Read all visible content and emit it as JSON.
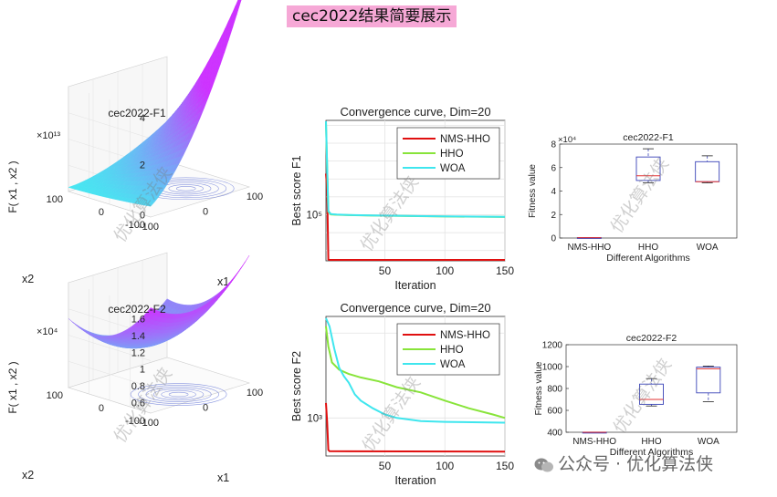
{
  "page": {
    "title": "cec2022结果简要展示"
  },
  "watermark": {
    "text": "公众号 · 优化算法侠",
    "overlay_text": "优化算法侠"
  },
  "colors": {
    "nms_hho": "#e01010",
    "hho": "#88e43a",
    "woa": "#3fe6ee",
    "box": "#3a44b8",
    "median": "#e23030",
    "surface_lo": "#3ff0f0",
    "surface_hi": "#cc33ff"
  },
  "chart_data": [
    {
      "id": "surf-f1",
      "type": "surface",
      "title": "cec2022-F1",
      "zlabel": "F( x1 , x2 )",
      "xlabel": "x1",
      "ylabel": "x2",
      "zmultiplier": "×10¹³",
      "zticks": [
        "0",
        "2",
        "4"
      ],
      "xticks": [
        "-100",
        "0",
        "100"
      ],
      "yticks": [
        "-100",
        "0",
        "100"
      ]
    },
    {
      "id": "conv-f1",
      "type": "line",
      "title": "Convergence curve, Dim=20",
      "xlabel": "Iteration",
      "ylabel": "Best score F1",
      "yscale": "log",
      "xlim": [
        1,
        150
      ],
      "xticks": [
        "50",
        "100",
        "150"
      ],
      "yticklabel": "10⁵",
      "legend_position": "top-right",
      "series": [
        {
          "name": "NMS-HHO",
          "color": "#e01010",
          "x": [
            1,
            2,
            3,
            4,
            150
          ],
          "y": [
            20000000,
            3000000,
            320,
            301,
            300
          ]
        },
        {
          "name": "HHO",
          "color": "#88e43a",
          "x": [
            1,
            3,
            5,
            10,
            20,
            40,
            70,
            100,
            150
          ],
          "y": [
            15000000000,
            150000,
            105000,
            100000,
            96000,
            90000,
            85000,
            80000,
            76000
          ]
        },
        {
          "name": "WOA",
          "color": "#3fe6ee",
          "x": [
            1,
            3,
            5,
            10,
            20,
            40,
            70,
            100,
            150
          ],
          "y": [
            18000000000,
            160000,
            110000,
            102000,
            97000,
            91000,
            86000,
            81000,
            77000
          ]
        }
      ]
    },
    {
      "id": "box-f1",
      "type": "box",
      "title": "cec2022-F1",
      "xlabel": "Different Algorithms",
      "ylabel": "Fitness value",
      "ymultiplier": "×10⁴",
      "ylim": [
        0,
        8
      ],
      "yticks": [
        "0",
        "2",
        "4",
        "6",
        "8"
      ],
      "categories": [
        "NMS-HHO",
        "HHO",
        "WOA"
      ],
      "boxes": [
        {
          "min": 0.03,
          "q1": 0.03,
          "median": 0.03,
          "q3": 0.04,
          "max": 0.04
        },
        {
          "min": 4.7,
          "q1": 4.9,
          "median": 5.3,
          "q3": 6.9,
          "max": 7.6
        },
        {
          "min": 4.7,
          "q1": 4.8,
          "median": 4.8,
          "q3": 6.5,
          "max": 7.0
        }
      ]
    },
    {
      "id": "surf-f2",
      "type": "surface",
      "title": "cec2022-F2",
      "zlabel": "F( x1 , x2 )",
      "xlabel": "x1",
      "ylabel": "x2",
      "zmultiplier": "×10⁴",
      "zticks": [
        "0.6",
        "0.8",
        "1",
        "1.2",
        "1.4",
        "1.6"
      ],
      "xticks": [
        "-100",
        "0",
        "100"
      ],
      "yticks": [
        "-100",
        "0",
        "100"
      ]
    },
    {
      "id": "conv-f2",
      "type": "line",
      "title": "Convergence curve, Dim=20",
      "xlabel": "Iteration",
      "ylabel": "Best score F2",
      "yscale": "log",
      "xlim": [
        1,
        150
      ],
      "xticks": [
        "50",
        "100",
        "150"
      ],
      "yticklabel": "10³",
      "legend_position": "top-right",
      "series": [
        {
          "name": "NMS-HHO",
          "color": "#e01010",
          "x": [
            1,
            2,
            3,
            4,
            150
          ],
          "y": [
            1500,
            900,
            420,
            405,
            400
          ]
        },
        {
          "name": "HHO",
          "color": "#88e43a",
          "x": [
            1,
            3,
            6,
            12,
            20,
            30,
            45,
            60,
            80,
            100,
            120,
            140,
            150
          ],
          "y": [
            12000,
            7000,
            4500,
            3700,
            3300,
            3000,
            2700,
            2300,
            2000,
            1600,
            1300,
            1100,
            1000
          ]
        },
        {
          "name": "WOA",
          "color": "#3fe6ee",
          "x": [
            1,
            4,
            8,
            12,
            16,
            20,
            25,
            30,
            40,
            50,
            60,
            80,
            100,
            150
          ],
          "y": [
            15000,
            12000,
            6500,
            3900,
            3100,
            2600,
            1900,
            1600,
            1300,
            1100,
            1000,
            920,
            900,
            880
          ]
        }
      ]
    },
    {
      "id": "box-f2",
      "type": "box",
      "title": "cec2022-F2",
      "xlabel": "Different Algorithms",
      "ylabel": "Fitness value",
      "ylim": [
        400,
        1200
      ],
      "yticks": [
        "400",
        "600",
        "800",
        "1000",
        "1200"
      ],
      "categories": [
        "NMS-HHO",
        "HHO",
        "WOA"
      ],
      "boxes": [
        {
          "min": 400,
          "q1": 400,
          "median": 400,
          "q3": 401,
          "max": 401
        },
        {
          "min": 640,
          "q1": 655,
          "median": 700,
          "q3": 840,
          "max": 890
        },
        {
          "min": 680,
          "q1": 760,
          "median": 980,
          "q3": 995,
          "max": 1005
        }
      ]
    }
  ]
}
